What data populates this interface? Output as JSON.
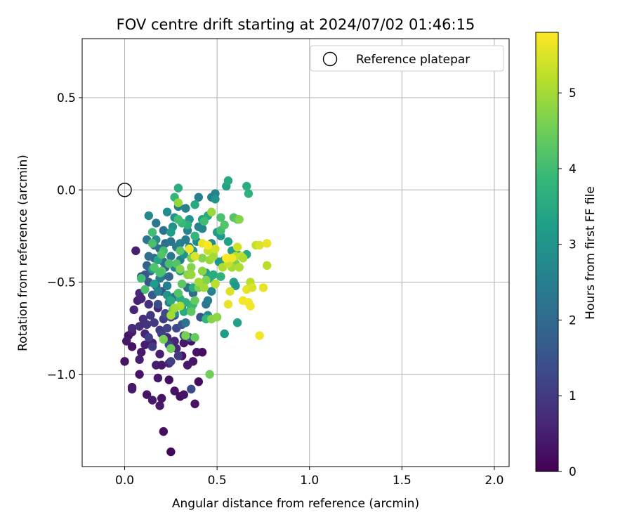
{
  "chart_data": {
    "type": "scatter",
    "title": "FOV centre drift starting at 2024/07/02 01:46:15",
    "xlabel": "Angular distance from reference (arcmin)",
    "ylabel": "Rotation from reference (arcmin)",
    "xlim": [
      -0.23,
      2.08
    ],
    "ylim": [
      -1.5,
      0.82
    ],
    "xticks": [
      0.0,
      0.5,
      1.0,
      1.5,
      2.0
    ],
    "xtick_labels": [
      "0.0",
      "0.5",
      "1.0",
      "1.5",
      "2.0"
    ],
    "yticks": [
      0.5,
      0.0,
      -0.5,
      -1.0
    ],
    "ytick_labels": [
      "0.5",
      "0.0",
      "−0.5",
      "−1.0"
    ],
    "grid": true,
    "legend": {
      "position": "top-right",
      "entries": [
        "Reference platepar"
      ]
    },
    "reference_point": {
      "x": 0.0,
      "y": 0.0,
      "label": "Reference platepar"
    },
    "colorbar": {
      "label": "Hours from first FF file",
      "range": [
        0,
        5.8
      ],
      "ticks": [
        0,
        1,
        2,
        3,
        4,
        5
      ],
      "tick_labels": [
        "0",
        "1",
        "2",
        "3",
        "4",
        "5"
      ],
      "colormap": "viridis"
    },
    "colormap_stops": [
      "#440154",
      "#482878",
      "#3e4989",
      "#31688e",
      "#26828e",
      "#1f9e89",
      "#35b779",
      "#6ece58",
      "#b5de2b",
      "#fde725"
    ],
    "points": [
      [
        0.25,
        -1.42,
        0.1
      ],
      [
        0.21,
        -1.31,
        0.2
      ],
      [
        0.08,
        -1.0,
        0.3
      ],
      [
        0.12,
        -1.11,
        0.3
      ],
      [
        0.15,
        -1.14,
        0.4
      ],
      [
        0.19,
        -1.17,
        0.4
      ],
      [
        0.2,
        -1.13,
        0.3
      ],
      [
        0.24,
        -1.03,
        0.2
      ],
      [
        0.27,
        -1.09,
        0.3
      ],
      [
        0.3,
        -1.12,
        0.2
      ],
      [
        0.32,
        -1.11,
        0.3
      ],
      [
        0.38,
        -1.16,
        0.3
      ],
      [
        0.4,
        -1.04,
        0.2
      ],
      [
        0.37,
        -0.93,
        0.3
      ],
      [
        0.39,
        -0.88,
        0.3
      ],
      [
        0.42,
        -0.88,
        0.2
      ],
      [
        0.34,
        -0.95,
        0.4
      ],
      [
        0.31,
        -0.9,
        0.3
      ],
      [
        0.36,
        -0.82,
        0.3
      ],
      [
        0.32,
        -0.83,
        0.4
      ],
      [
        0.0,
        -0.93,
        0.3
      ],
      [
        0.02,
        -0.79,
        0.3
      ],
      [
        0.01,
        -0.82,
        0.4
      ],
      [
        0.04,
        -0.85,
        0.3
      ],
      [
        0.04,
        -0.77,
        0.5
      ],
      [
        0.04,
        -1.07,
        0.4
      ],
      [
        0.04,
        -1.08,
        0.4
      ],
      [
        0.11,
        -0.84,
        0.5
      ],
      [
        0.09,
        -0.88,
        0.4
      ],
      [
        0.08,
        -0.92,
        0.5
      ],
      [
        0.11,
        -0.78,
        0.6
      ],
      [
        0.15,
        -0.83,
        0.5
      ],
      [
        0.17,
        -0.95,
        0.5
      ],
      [
        0.19,
        -0.89,
        0.5
      ],
      [
        0.2,
        -0.95,
        0.4
      ],
      [
        0.24,
        -0.94,
        0.6
      ],
      [
        0.18,
        -1.02,
        0.4
      ],
      [
        0.23,
        -0.8,
        0.7
      ],
      [
        0.27,
        -0.82,
        0.6
      ],
      [
        0.28,
        -0.86,
        0.6
      ],
      [
        0.07,
        -0.6,
        0.5
      ],
      [
        0.05,
        -0.65,
        0.6
      ],
      [
        0.08,
        -0.56,
        0.7
      ],
      [
        0.09,
        -0.59,
        0.6
      ],
      [
        0.06,
        -0.33,
        0.5
      ],
      [
        0.13,
        -0.62,
        0.8
      ],
      [
        0.18,
        -0.64,
        0.7
      ],
      [
        0.1,
        -0.7,
        0.8
      ],
      [
        0.08,
        -0.74,
        0.8
      ],
      [
        0.04,
        -0.75,
        0.7
      ],
      [
        0.12,
        -0.73,
        0.9
      ],
      [
        0.14,
        -0.68,
        0.9
      ],
      [
        0.16,
        -0.72,
        1.0
      ],
      [
        0.19,
        -0.76,
        1.0
      ],
      [
        0.21,
        -0.7,
        1.1
      ],
      [
        0.2,
        -0.78,
        1.1
      ],
      [
        0.23,
        -0.75,
        1.2
      ],
      [
        0.24,
        -0.84,
        1.2
      ],
      [
        0.22,
        -0.67,
        1.3
      ],
      [
        0.25,
        -0.69,
        1.2
      ],
      [
        0.27,
        -0.68,
        1.3
      ],
      [
        0.28,
        -0.75,
        1.3
      ],
      [
        0.15,
        -0.85,
        1.0
      ],
      [
        0.13,
        -0.8,
        1.1
      ],
      [
        0.25,
        -0.93,
        1.1
      ],
      [
        0.29,
        -0.9,
        1.0
      ],
      [
        0.36,
        -1.08,
        1.3
      ],
      [
        0.32,
        -0.79,
        1.4
      ],
      [
        0.35,
        -0.8,
        1.5
      ],
      [
        0.31,
        -0.73,
        1.6
      ],
      [
        0.41,
        -0.69,
        1.5
      ],
      [
        0.18,
        -0.62,
        1.4
      ],
      [
        0.2,
        -0.55,
        1.5
      ],
      [
        0.13,
        -0.5,
        1.5
      ],
      [
        0.11,
        -0.46,
        1.6
      ],
      [
        0.09,
        -0.47,
        1.5
      ],
      [
        0.15,
        -0.57,
        1.6
      ],
      [
        0.17,
        -0.52,
        1.7
      ],
      [
        0.12,
        -0.41,
        1.8
      ],
      [
        0.14,
        -0.44,
        1.7
      ],
      [
        0.2,
        -0.47,
        1.8
      ],
      [
        0.22,
        -0.42,
        1.9
      ],
      [
        0.24,
        -0.47,
        1.9
      ],
      [
        0.21,
        -0.39,
        2.0
      ],
      [
        0.16,
        -0.37,
        2.0
      ],
      [
        0.19,
        -0.32,
        2.1
      ],
      [
        0.22,
        -0.29,
        2.1
      ],
      [
        0.25,
        -0.28,
        2.2
      ],
      [
        0.21,
        -0.22,
        2.2
      ],
      [
        0.17,
        -0.18,
        2.3
      ],
      [
        0.12,
        -0.27,
        2.3
      ],
      [
        0.13,
        -0.36,
        2.1
      ],
      [
        0.16,
        -0.3,
        2.2
      ],
      [
        0.28,
        -0.31,
        2.4
      ],
      [
        0.3,
        -0.29,
        2.5
      ],
      [
        0.33,
        -0.27,
        2.4
      ],
      [
        0.35,
        -0.31,
        2.6
      ],
      [
        0.3,
        -0.38,
        2.5
      ],
      [
        0.27,
        -0.42,
        2.6
      ],
      [
        0.25,
        -0.36,
        2.3
      ],
      [
        0.34,
        -0.22,
        2.6
      ],
      [
        0.4,
        -0.2,
        2.6
      ],
      [
        0.42,
        -0.21,
        2.7
      ],
      [
        0.39,
        -0.28,
        2.7
      ],
      [
        0.47,
        -0.29,
        2.8
      ],
      [
        0.47,
        -0.04,
        2.5
      ],
      [
        0.49,
        -0.02,
        2.6
      ],
      [
        0.4,
        -0.04,
        2.5
      ],
      [
        0.29,
        -0.09,
        2.5
      ],
      [
        0.33,
        -0.1,
        2.6
      ],
      [
        0.34,
        -0.53,
        2.1
      ],
      [
        0.37,
        -0.56,
        2.0
      ],
      [
        0.31,
        -0.63,
        1.9
      ],
      [
        0.27,
        -0.58,
        2.2
      ],
      [
        0.24,
        -0.61,
        2.4
      ],
      [
        0.44,
        -0.62,
        2.3
      ],
      [
        0.45,
        -0.6,
        2.4
      ],
      [
        0.47,
        -0.55,
        2.6
      ],
      [
        0.49,
        -0.51,
        2.5
      ],
      [
        0.45,
        -0.68,
        2.8
      ],
      [
        0.33,
        -0.72,
        2.2
      ],
      [
        0.19,
        -0.48,
        2.4
      ],
      [
        0.23,
        -0.52,
        2.5
      ],
      [
        0.18,
        -0.55,
        2.6
      ],
      [
        0.13,
        -0.14,
        2.7
      ],
      [
        0.17,
        -0.27,
        2.8
      ],
      [
        0.23,
        -0.12,
        2.8
      ],
      [
        0.26,
        -0.2,
        2.9
      ],
      [
        0.27,
        -0.15,
        3.0
      ],
      [
        0.25,
        -0.23,
        3.2
      ],
      [
        0.35,
        -0.16,
        3.0
      ],
      [
        0.32,
        -0.35,
        3.0
      ],
      [
        0.37,
        -0.33,
        3.1
      ],
      [
        0.3,
        -0.44,
        3.1
      ],
      [
        0.23,
        -0.57,
        3.0
      ],
      [
        0.27,
        -0.67,
        2.9
      ],
      [
        0.2,
        -0.45,
        3.1
      ],
      [
        0.16,
        -0.51,
        3.2
      ],
      [
        0.15,
        -0.43,
        3.3
      ],
      [
        0.18,
        -0.38,
        3.4
      ],
      [
        0.55,
        0.02,
        3.3
      ],
      [
        0.56,
        0.05,
        3.5
      ],
      [
        0.5,
        -0.23,
        3.2
      ],
      [
        0.52,
        -0.25,
        3.1
      ],
      [
        0.51,
        -0.39,
        3.0
      ],
      [
        0.54,
        -0.38,
        3.2
      ],
      [
        0.56,
        -0.28,
        3.3
      ],
      [
        0.58,
        -0.33,
        3.2
      ],
      [
        0.59,
        -0.5,
        3.3
      ],
      [
        0.6,
        -0.52,
        3.1
      ],
      [
        0.61,
        -0.72,
        3.3
      ],
      [
        0.54,
        -0.78,
        3.2
      ],
      [
        0.61,
        -0.35,
        3.4
      ],
      [
        0.66,
        -0.35,
        3.5
      ],
      [
        0.66,
        0.02,
        3.6
      ],
      [
        0.67,
        -0.02,
        3.7
      ],
      [
        0.49,
        -0.05,
        3.0
      ],
      [
        0.42,
        -0.16,
        3.3
      ],
      [
        0.45,
        -0.14,
        3.5
      ],
      [
        0.38,
        -0.08,
        3.5
      ],
      [
        0.37,
        -0.53,
        3.6
      ],
      [
        0.44,
        -0.45,
        3.4
      ],
      [
        0.46,
        -0.48,
        3.5
      ],
      [
        0.48,
        -0.46,
        3.6
      ],
      [
        0.52,
        -0.47,
        3.7
      ],
      [
        0.3,
        -0.59,
        3.6
      ],
      [
        0.33,
        -0.61,
        3.7
      ],
      [
        0.36,
        -0.64,
        3.8
      ],
      [
        0.37,
        -0.62,
        3.9
      ],
      [
        0.44,
        -0.7,
        3.8
      ],
      [
        0.32,
        -0.66,
        3.5
      ],
      [
        0.25,
        -0.6,
        3.5
      ],
      [
        0.27,
        -0.04,
        3.8
      ],
      [
        0.29,
        0.01,
        3.6
      ],
      [
        0.34,
        -0.19,
        3.7
      ],
      [
        0.31,
        -0.18,
        3.9
      ],
      [
        0.29,
        -0.16,
        4.0
      ],
      [
        0.38,
        -0.25,
        3.8
      ],
      [
        0.43,
        -0.17,
        4.0
      ],
      [
        0.52,
        -0.15,
        4.1
      ],
      [
        0.59,
        -0.15,
        4.2
      ],
      [
        0.61,
        -0.16,
        4.3
      ],
      [
        0.52,
        -0.22,
        4.0
      ],
      [
        0.54,
        -0.19,
        4.2
      ],
      [
        0.15,
        -0.23,
        4.0
      ],
      [
        0.15,
        -0.29,
        4.1
      ],
      [
        0.21,
        -0.33,
        4.0
      ],
      [
        0.2,
        -0.35,
        4.2
      ],
      [
        0.24,
        -0.4,
        4.1
      ],
      [
        0.28,
        -0.4,
        4.2
      ],
      [
        0.3,
        -0.33,
        4.3
      ],
      [
        0.16,
        -0.42,
        4.2
      ],
      [
        0.09,
        -0.48,
        4.0
      ],
      [
        0.11,
        -0.54,
        4.1
      ],
      [
        0.2,
        -0.44,
        4.3
      ],
      [
        0.19,
        -0.45,
        4.1
      ],
      [
        0.31,
        -0.51,
        4.3
      ],
      [
        0.29,
        -0.56,
        4.2
      ],
      [
        0.26,
        -0.65,
        4.4
      ],
      [
        0.38,
        -0.6,
        4.4
      ],
      [
        0.36,
        -0.66,
        4.3
      ],
      [
        0.38,
        -0.8,
        4.4
      ],
      [
        0.33,
        -0.79,
        4.6
      ],
      [
        0.21,
        -0.81,
        4.6
      ],
      [
        0.25,
        -0.86,
        4.5
      ],
      [
        0.46,
        -1.0,
        4.5
      ],
      [
        0.47,
        -0.7,
        4.7
      ],
      [
        0.5,
        -0.69,
        4.8
      ],
      [
        0.57,
        -0.38,
        4.6
      ],
      [
        0.6,
        -0.4,
        4.6
      ],
      [
        0.62,
        -0.16,
        4.7
      ],
      [
        0.47,
        -0.12,
        4.9
      ],
      [
        0.29,
        -0.07,
        4.9
      ],
      [
        0.3,
        -0.43,
        4.7
      ],
      [
        0.34,
        -0.46,
        4.8
      ],
      [
        0.36,
        -0.42,
        4.7
      ],
      [
        0.36,
        -0.46,
        4.9
      ],
      [
        0.42,
        -0.44,
        4.8
      ],
      [
        0.44,
        -0.49,
        4.7
      ],
      [
        0.4,
        -0.53,
        4.6
      ],
      [
        0.36,
        -0.37,
        4.6
      ],
      [
        0.42,
        -0.37,
        4.7
      ],
      [
        0.46,
        -0.38,
        4.9
      ],
      [
        0.48,
        -0.36,
        5.0
      ],
      [
        0.53,
        -0.42,
        5.1
      ],
      [
        0.58,
        -0.42,
        5.0
      ],
      [
        0.62,
        -0.42,
        5.1
      ],
      [
        0.4,
        -0.5,
        5.0
      ],
      [
        0.43,
        -0.53,
        5.0
      ],
      [
        0.49,
        -0.51,
        5.2
      ],
      [
        0.25,
        -0.68,
        5.0
      ],
      [
        0.3,
        -0.63,
        5.1
      ],
      [
        0.27,
        -0.64,
        5.0
      ],
      [
        0.45,
        -0.33,
        5.3
      ],
      [
        0.49,
        -0.32,
        5.4
      ],
      [
        0.56,
        -0.4,
        5.3
      ],
      [
        0.6,
        -0.36,
        5.2
      ],
      [
        0.63,
        -0.36,
        5.3
      ],
      [
        0.61,
        -0.31,
        5.4
      ],
      [
        0.64,
        -0.37,
        5.1
      ],
      [
        0.68,
        -0.5,
        5.2
      ],
      [
        0.71,
        -0.3,
        5.3
      ],
      [
        0.77,
        -0.41,
        5.2
      ],
      [
        0.73,
        -0.3,
        5.5
      ],
      [
        0.77,
        -0.29,
        5.6
      ],
      [
        0.57,
        -0.55,
        5.5
      ],
      [
        0.56,
        -0.62,
        5.6
      ],
      [
        0.64,
        -0.6,
        5.7
      ],
      [
        0.66,
        -0.54,
        5.6
      ],
      [
        0.67,
        -0.61,
        5.7
      ],
      [
        0.68,
        -0.63,
        5.7
      ],
      [
        0.69,
        -0.53,
        5.5
      ],
      [
        0.75,
        -0.53,
        5.6
      ],
      [
        0.73,
        -0.79,
        5.7
      ],
      [
        0.42,
        -0.29,
        5.6
      ],
      [
        0.45,
        -0.3,
        5.8
      ],
      [
        0.35,
        -0.32,
        5.7
      ],
      [
        0.38,
        -0.36,
        5.5
      ],
      [
        0.55,
        -0.37,
        5.8
      ],
      [
        0.58,
        -0.37,
        5.7
      ]
    ]
  }
}
